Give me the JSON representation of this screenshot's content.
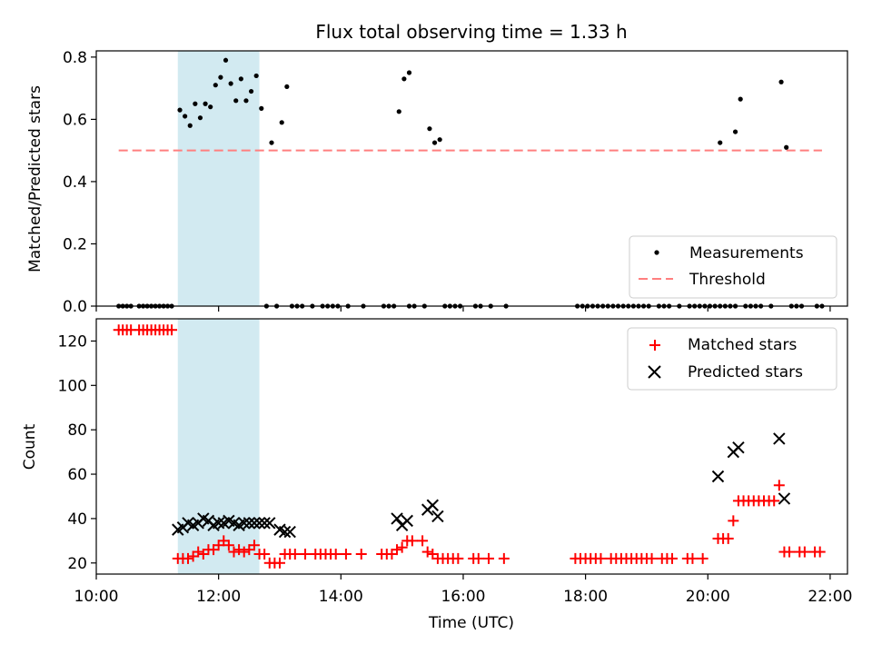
{
  "colors": {
    "highlight": "#add8e6",
    "threshold": "#ff7f7f",
    "matched": "#ff0000",
    "predicted": "#000000",
    "measurements": "#000000"
  },
  "chart_data": [
    {
      "type": "scatter",
      "title": "Flux total observing time = 1.33 h",
      "xlabel": "",
      "ylabel": "Matched/Predicted stars",
      "xlim": [
        "10:00",
        "22:17"
      ],
      "ylim": [
        0,
        0.82
      ],
      "yticks": [
        "0.0",
        "0.2",
        "0.4",
        "0.6",
        "0.8"
      ],
      "highlight_span": [
        "11:20",
        "12:40"
      ],
      "legend": {
        "position": "lower-right",
        "entries": [
          "Measurements",
          "Threshold"
        ]
      },
      "series": [
        {
          "name": "Measurements",
          "marker": "dot",
          "points": [
            [
              "10:22",
              0
            ],
            [
              "10:26",
              0
            ],
            [
              "10:30",
              0
            ],
            [
              "10:34",
              0
            ],
            [
              "10:42",
              0
            ],
            [
              "10:46",
              0
            ],
            [
              "10:50",
              0
            ],
            [
              "10:54",
              0
            ],
            [
              "10:58",
              0
            ],
            [
              "11:02",
              0
            ],
            [
              "11:06",
              0
            ],
            [
              "11:10",
              0
            ],
            [
              "11:14",
              0
            ],
            [
              "11:22",
              0.63
            ],
            [
              "11:27",
              0.61
            ],
            [
              "11:32",
              0.58
            ],
            [
              "11:37",
              0.65
            ],
            [
              "11:42",
              0.605
            ],
            [
              "11:47",
              0.65
            ],
            [
              "11:52",
              0.64
            ],
            [
              "11:57",
              0.71
            ],
            [
              "12:02",
              0.735
            ],
            [
              "12:07",
              0.79
            ],
            [
              "12:12",
              0.715
            ],
            [
              "12:17",
              0.66
            ],
            [
              "12:22",
              0.73
            ],
            [
              "12:27",
              0.66
            ],
            [
              "12:32",
              0.69
            ],
            [
              "12:37",
              0.74
            ],
            [
              "12:42",
              0.635
            ],
            [
              "12:52",
              0.525
            ],
            [
              "13:02",
              0.59
            ],
            [
              "13:07",
              0.705
            ],
            [
              "12:47",
              0
            ],
            [
              "12:57",
              0
            ],
            [
              "13:12",
              0
            ],
            [
              "13:17",
              0
            ],
            [
              "13:22",
              0
            ],
            [
              "13:32",
              0
            ],
            [
              "13:42",
              0
            ],
            [
              "13:47",
              0
            ],
            [
              "13:52",
              0
            ],
            [
              "13:57",
              0
            ],
            [
              "14:07",
              0
            ],
            [
              "14:22",
              0
            ],
            [
              "14:42",
              0
            ],
            [
              "14:47",
              0
            ],
            [
              "14:52",
              0
            ],
            [
              "15:07",
              0
            ],
            [
              "15:12",
              0
            ],
            [
              "15:22",
              0
            ],
            [
              "15:42",
              0
            ],
            [
              "15:47",
              0
            ],
            [
              "15:52",
              0
            ],
            [
              "15:57",
              0
            ],
            [
              "16:12",
              0
            ],
            [
              "16:17",
              0
            ],
            [
              "16:27",
              0
            ],
            [
              "16:42",
              0
            ],
            [
              "14:57",
              0.625
            ],
            [
              "15:02",
              0.73
            ],
            [
              "15:07",
              0.75
            ],
            [
              "15:27",
              0.57
            ],
            [
              "15:32",
              0.525
            ],
            [
              "15:37",
              0.535
            ],
            [
              "17:52",
              0
            ],
            [
              "17:57",
              0
            ],
            [
              "18:02",
              0
            ],
            [
              "18:07",
              0
            ],
            [
              "18:12",
              0
            ],
            [
              "18:17",
              0
            ],
            [
              "18:22",
              0
            ],
            [
              "18:27",
              0
            ],
            [
              "18:32",
              0
            ],
            [
              "18:37",
              0
            ],
            [
              "18:42",
              0
            ],
            [
              "18:47",
              0
            ],
            [
              "18:52",
              0
            ],
            [
              "18:57",
              0
            ],
            [
              "19:02",
              0
            ],
            [
              "19:12",
              0
            ],
            [
              "19:17",
              0
            ],
            [
              "19:22",
              0
            ],
            [
              "19:32",
              0
            ],
            [
              "19:42",
              0
            ],
            [
              "19:47",
              0
            ],
            [
              "19:52",
              0
            ],
            [
              "19:57",
              0
            ],
            [
              "20:02",
              0
            ],
            [
              "20:07",
              0
            ],
            [
              "20:12",
              0
            ],
            [
              "20:17",
              0
            ],
            [
              "20:22",
              0
            ],
            [
              "20:27",
              0
            ],
            [
              "20:37",
              0
            ],
            [
              "20:42",
              0
            ],
            [
              "20:47",
              0
            ],
            [
              "20:52",
              0
            ],
            [
              "21:02",
              0
            ],
            [
              "21:22",
              0
            ],
            [
              "21:27",
              0
            ],
            [
              "21:32",
              0
            ],
            [
              "21:47",
              0
            ],
            [
              "21:52",
              0
            ],
            [
              "20:12",
              0.525
            ],
            [
              "20:27",
              0.56
            ],
            [
              "20:32",
              0.665
            ],
            [
              "21:12",
              0.72
            ],
            [
              "21:17",
              0.51
            ]
          ]
        },
        {
          "name": "Threshold",
          "marker": "dashed-line",
          "points": [
            [
              "10:22",
              0.5
            ],
            [
              "21:52",
              0.5
            ]
          ]
        }
      ]
    },
    {
      "type": "scatter",
      "title": "",
      "xlabel": "Time (UTC)",
      "ylabel": "Count",
      "xlim": [
        "10:00",
        "22:17"
      ],
      "ylim": [
        15,
        130
      ],
      "xticks": [
        "10:00",
        "12:00",
        "14:00",
        "16:00",
        "18:00",
        "20:00",
        "22:00"
      ],
      "yticks": [
        "20",
        "40",
        "60",
        "80",
        "100",
        "120"
      ],
      "highlight_span": [
        "11:20",
        "12:40"
      ],
      "legend": {
        "position": "upper-right",
        "entries": [
          "Matched stars",
          "Predicted stars"
        ]
      },
      "series": [
        {
          "name": "Matched stars",
          "marker": "plus",
          "points": [
            [
              "10:22",
              125
            ],
            [
              "10:26",
              125
            ],
            [
              "10:30",
              125
            ],
            [
              "10:34",
              125
            ],
            [
              "10:42",
              125
            ],
            [
              "10:46",
              125
            ],
            [
              "10:50",
              125
            ],
            [
              "10:54",
              125
            ],
            [
              "10:58",
              125
            ],
            [
              "11:02",
              125
            ],
            [
              "11:06",
              125
            ],
            [
              "11:10",
              125
            ],
            [
              "11:14",
              125
            ],
            [
              "11:20",
              22
            ],
            [
              "11:25",
              22
            ],
            [
              "11:30",
              22
            ],
            [
              "11:35",
              23
            ],
            [
              "11:40",
              25
            ],
            [
              "11:45",
              24
            ],
            [
              "11:50",
              26
            ],
            [
              "11:55",
              26
            ],
            [
              "12:00",
              28
            ],
            [
              "12:05",
              30
            ],
            [
              "12:10",
              28
            ],
            [
              "12:15",
              25
            ],
            [
              "12:20",
              26
            ],
            [
              "12:25",
              25
            ],
            [
              "12:30",
              26
            ],
            [
              "12:35",
              28
            ],
            [
              "12:40",
              24
            ],
            [
              "12:45",
              24
            ],
            [
              "12:50",
              20
            ],
            [
              "12:55",
              20
            ],
            [
              "13:00",
              20
            ],
            [
              "13:05",
              24
            ],
            [
              "13:10",
              24
            ],
            [
              "13:15",
              24
            ],
            [
              "13:25",
              24
            ],
            [
              "13:35",
              24
            ],
            [
              "13:40",
              24
            ],
            [
              "13:45",
              24
            ],
            [
              "13:50",
              24
            ],
            [
              "13:55",
              24
            ],
            [
              "14:05",
              24
            ],
            [
              "14:20",
              24
            ],
            [
              "14:40",
              24
            ],
            [
              "14:45",
              24
            ],
            [
              "14:50",
              24
            ],
            [
              "14:55",
              26
            ],
            [
              "15:00",
              27
            ],
            [
              "15:05",
              30
            ],
            [
              "15:10",
              30
            ],
            [
              "15:20",
              30
            ],
            [
              "15:25",
              25
            ],
            [
              "15:30",
              24
            ],
            [
              "15:35",
              22
            ],
            [
              "15:40",
              22
            ],
            [
              "15:45",
              22
            ],
            [
              "15:50",
              22
            ],
            [
              "15:55",
              22
            ],
            [
              "16:10",
              22
            ],
            [
              "16:15",
              22
            ],
            [
              "16:25",
              22
            ],
            [
              "16:40",
              22
            ],
            [
              "17:50",
              22
            ],
            [
              "17:55",
              22
            ],
            [
              "18:00",
              22
            ],
            [
              "18:05",
              22
            ],
            [
              "18:10",
              22
            ],
            [
              "18:15",
              22
            ],
            [
              "18:25",
              22
            ],
            [
              "18:30",
              22
            ],
            [
              "18:35",
              22
            ],
            [
              "18:40",
              22
            ],
            [
              "18:45",
              22
            ],
            [
              "18:50",
              22
            ],
            [
              "18:55",
              22
            ],
            [
              "19:00",
              22
            ],
            [
              "19:05",
              22
            ],
            [
              "19:15",
              22
            ],
            [
              "19:20",
              22
            ],
            [
              "19:25",
              22
            ],
            [
              "19:40",
              22
            ],
            [
              "19:45",
              22
            ],
            [
              "19:55",
              22
            ],
            [
              "20:10",
              31
            ],
            [
              "20:15",
              31
            ],
            [
              "20:20",
              31
            ],
            [
              "20:25",
              39
            ],
            [
              "20:30",
              48
            ],
            [
              "20:35",
              48
            ],
            [
              "20:40",
              48
            ],
            [
              "20:45",
              48
            ],
            [
              "20:50",
              48
            ],
            [
              "20:55",
              48
            ],
            [
              "21:00",
              48
            ],
            [
              "21:05",
              48
            ],
            [
              "21:10",
              55
            ],
            [
              "21:15",
              25
            ],
            [
              "21:20",
              25
            ],
            [
              "21:30",
              25
            ],
            [
              "21:35",
              25
            ],
            [
              "21:45",
              25
            ],
            [
              "21:50",
              25
            ]
          ]
        },
        {
          "name": "Predicted stars",
          "marker": "x",
          "points": [
            [
              "11:20",
              35
            ],
            [
              "11:25",
              36
            ],
            [
              "11:30",
              38
            ],
            [
              "11:35",
              37
            ],
            [
              "11:40",
              38
            ],
            [
              "11:45",
              40
            ],
            [
              "11:50",
              39
            ],
            [
              "11:55",
              37
            ],
            [
              "12:00",
              38
            ],
            [
              "12:05",
              38
            ],
            [
              "12:10",
              39
            ],
            [
              "12:15",
              38
            ],
            [
              "12:20",
              37
            ],
            [
              "12:25",
              38
            ],
            [
              "12:30",
              38
            ],
            [
              "12:35",
              38
            ],
            [
              "12:40",
              38
            ],
            [
              "12:45",
              38
            ],
            [
              "12:50",
              38
            ],
            [
              "13:00",
              35
            ],
            [
              "13:05",
              34
            ],
            [
              "13:10",
              34
            ],
            [
              "14:55",
              40
            ],
            [
              "15:00",
              37
            ],
            [
              "15:05",
              39
            ],
            [
              "15:25",
              44
            ],
            [
              "15:30",
              46
            ],
            [
              "15:35",
              41
            ],
            [
              "20:10",
              59
            ],
            [
              "20:25",
              70
            ],
            [
              "20:30",
              72
            ],
            [
              "21:10",
              76
            ],
            [
              "21:15",
              49
            ]
          ]
        }
      ]
    }
  ]
}
